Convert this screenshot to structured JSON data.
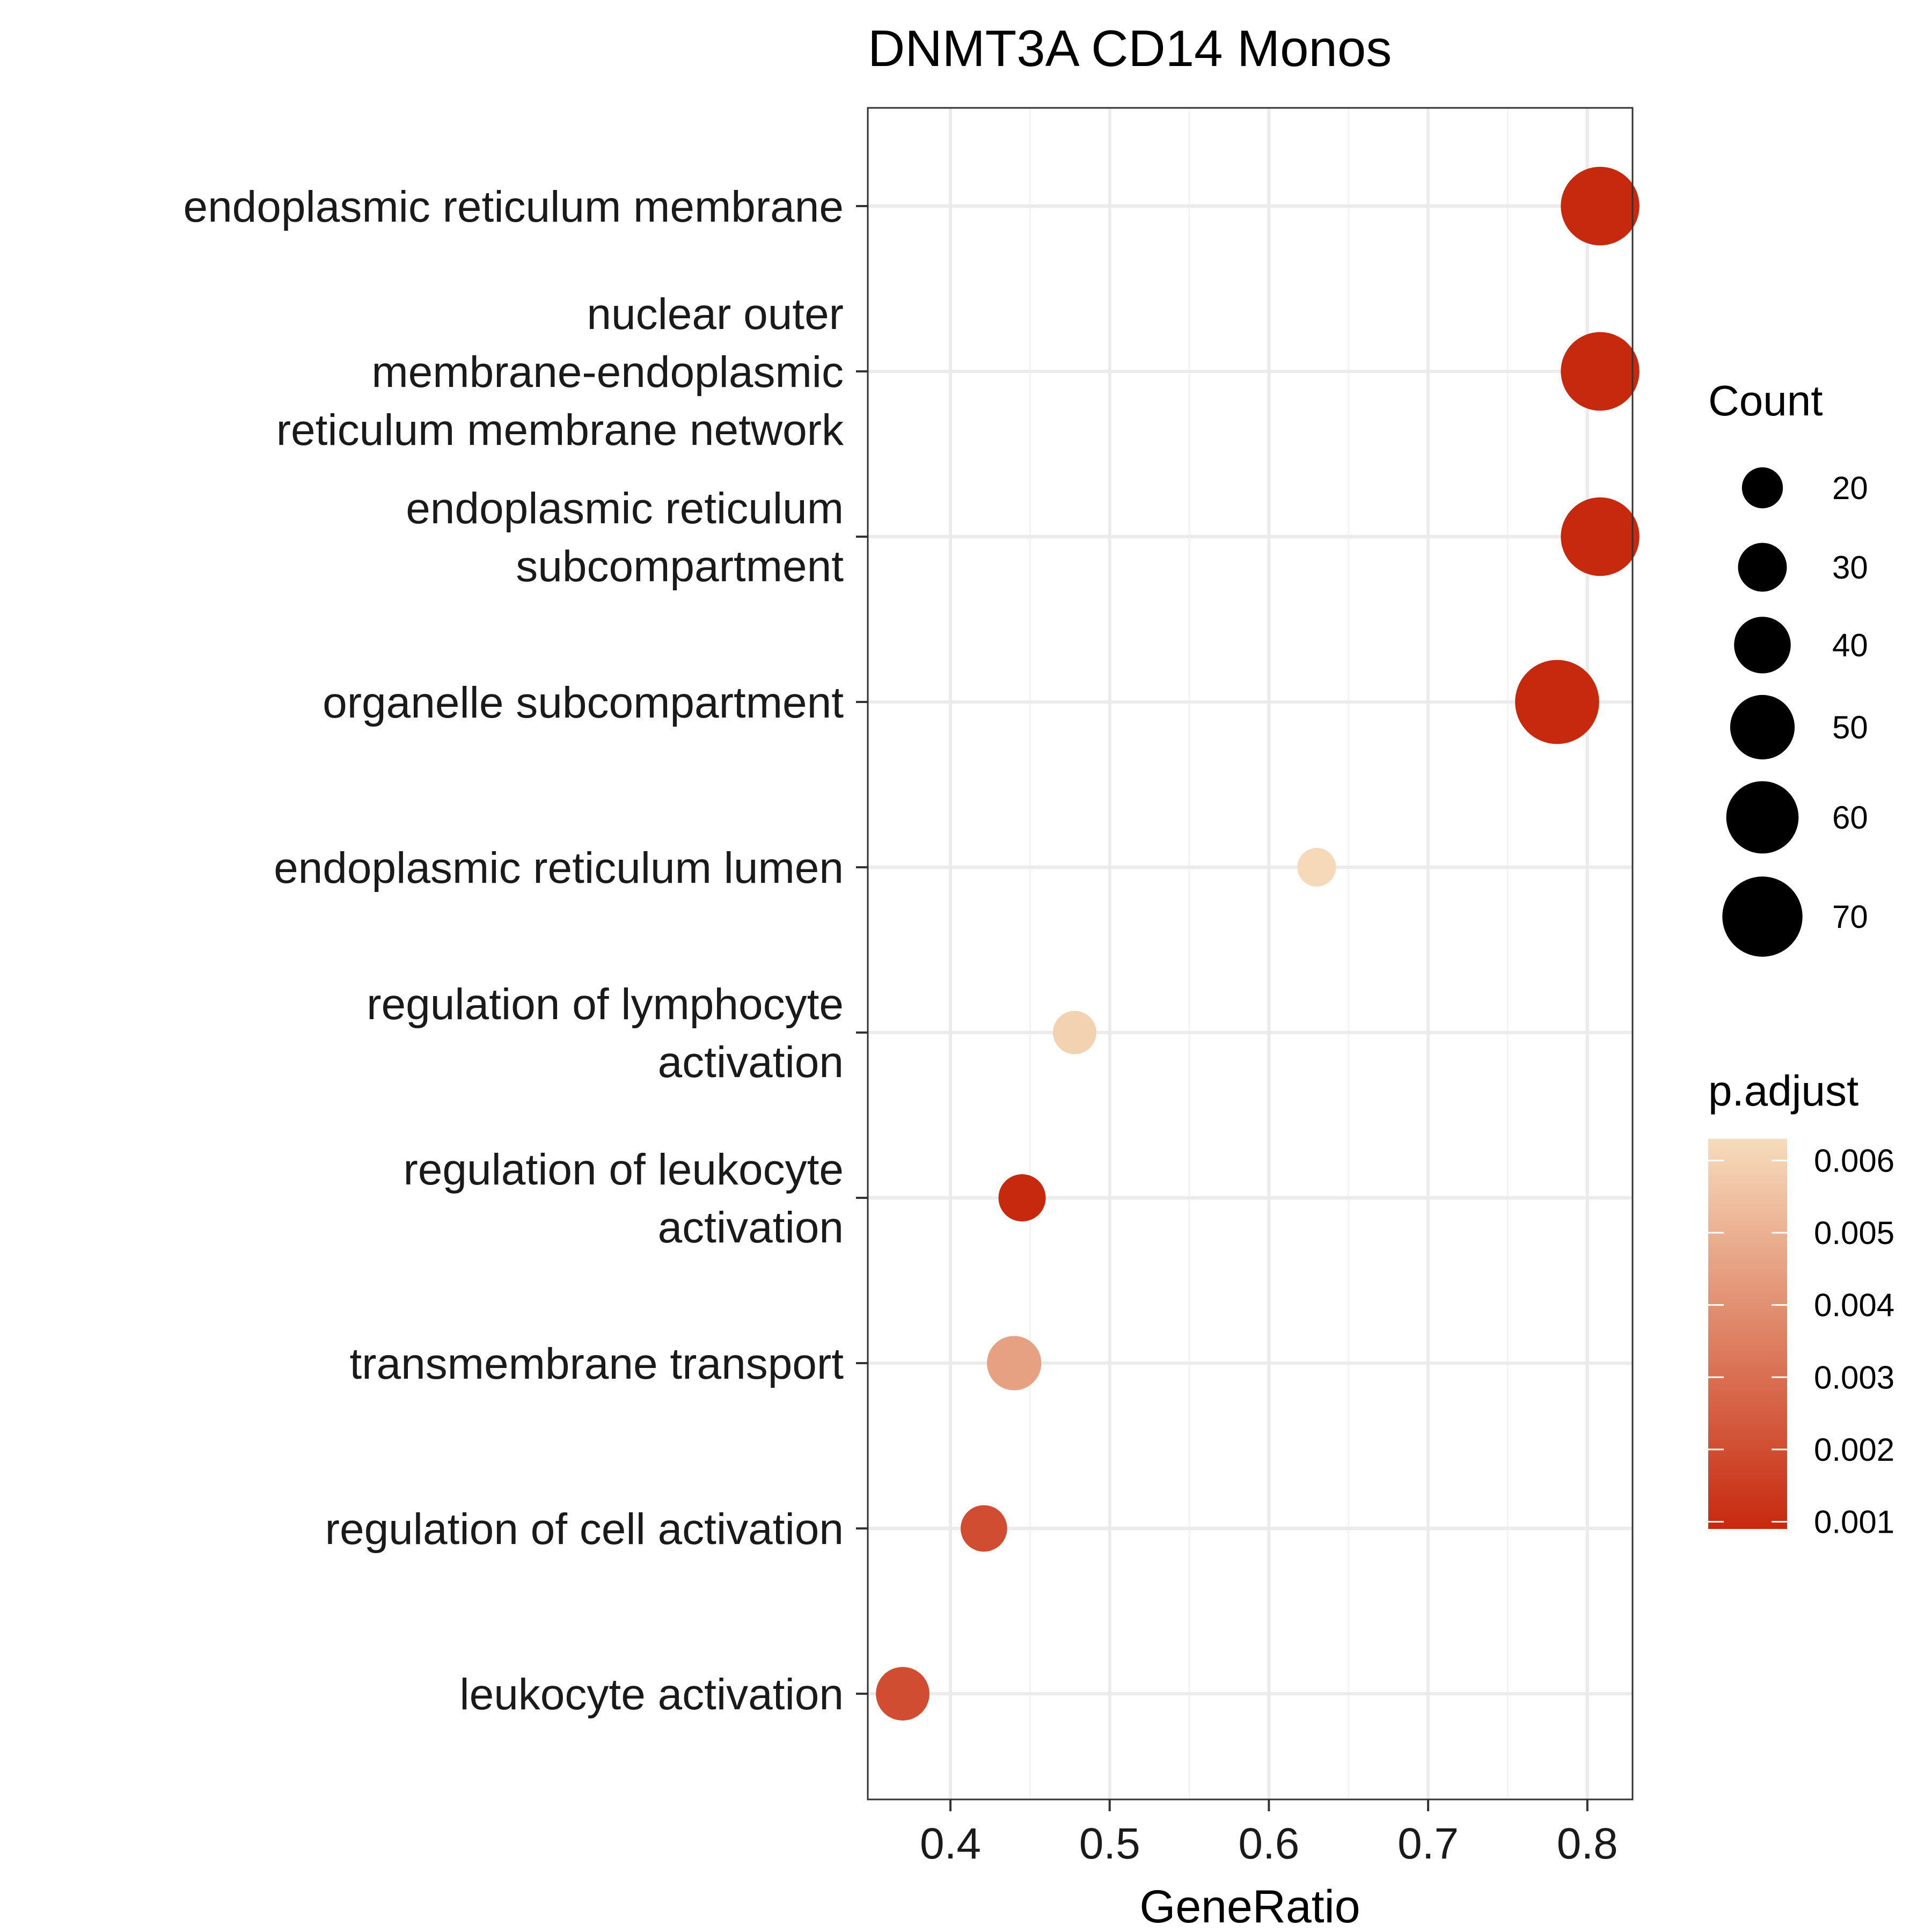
{
  "chart_data": {
    "type": "scatter",
    "title": "DNMT3A CD14 Monos",
    "xlabel": "GeneRatio",
    "ylabel": "",
    "xlim": [
      0.35,
      0.83
    ],
    "xticks": [
      0.4,
      0.5,
      0.6,
      0.7,
      0.8
    ],
    "xtick_labels": [
      "0.4",
      "0.5",
      "0.6",
      "0.7",
      "0.8"
    ],
    "grid": true,
    "categories": [
      {
        "lines": [
          "endoplasmic reticulum membrane"
        ]
      },
      {
        "lines": [
          "nuclear outer",
          "membrane-endoplasmic",
          "reticulum membrane network"
        ]
      },
      {
        "lines": [
          "endoplasmic reticulum",
          "subcompartment"
        ]
      },
      {
        "lines": [
          "organelle subcompartment"
        ]
      },
      {
        "lines": [
          "endoplasmic reticulum lumen"
        ]
      },
      {
        "lines": [
          "regulation of lymphocyte",
          "activation"
        ]
      },
      {
        "lines": [
          "regulation of leukocyte",
          "activation"
        ]
      },
      {
        "lines": [
          "transmembrane transport"
        ]
      },
      {
        "lines": [
          "regulation of cell activation"
        ]
      },
      {
        "lines": [
          "leukocyte activation"
        ]
      }
    ],
    "points": [
      {
        "category": 0,
        "x": 0.808,
        "count": 68,
        "p_adjust": 0.0009
      },
      {
        "category": 1,
        "x": 0.808,
        "count": 68,
        "p_adjust": 0.0009
      },
      {
        "category": 2,
        "x": 0.808,
        "count": 68,
        "p_adjust": 0.0009
      },
      {
        "category": 3,
        "x": 0.781,
        "count": 75,
        "p_adjust": 0.0009
      },
      {
        "category": 4,
        "x": 0.63,
        "count": 17,
        "p_adjust": 0.0062
      },
      {
        "category": 5,
        "x": 0.478,
        "count": 23,
        "p_adjust": 0.006
      },
      {
        "category": 6,
        "x": 0.445,
        "count": 28,
        "p_adjust": 0.0009
      },
      {
        "category": 7,
        "x": 0.44,
        "count": 37,
        "p_adjust": 0.0045
      },
      {
        "category": 8,
        "x": 0.421,
        "count": 27,
        "p_adjust": 0.002
      },
      {
        "category": 9,
        "x": 0.37,
        "count": 36,
        "p_adjust": 0.002
      }
    ],
    "size_legend": {
      "title": "Count",
      "values": [
        20,
        30,
        40,
        50,
        60,
        70
      ],
      "labels": [
        "20",
        "30",
        "40",
        "50",
        "60",
        "70"
      ]
    },
    "color_legend": {
      "title": "p.adjust",
      "min": 0.0009,
      "max": 0.0063,
      "ticks": [
        0.006,
        0.005,
        0.004,
        0.003,
        0.002,
        0.001
      ],
      "tick_labels": [
        "0.006",
        "0.005",
        "0.004",
        "0.003",
        "0.002",
        "0.001"
      ],
      "color_low": "#c7290e",
      "color_high": "#f6dcbc"
    },
    "colors": {
      "panel_border": "#333333",
      "grid_major": "#ebebeb",
      "grid_minor": "#f3f3f3"
    }
  }
}
